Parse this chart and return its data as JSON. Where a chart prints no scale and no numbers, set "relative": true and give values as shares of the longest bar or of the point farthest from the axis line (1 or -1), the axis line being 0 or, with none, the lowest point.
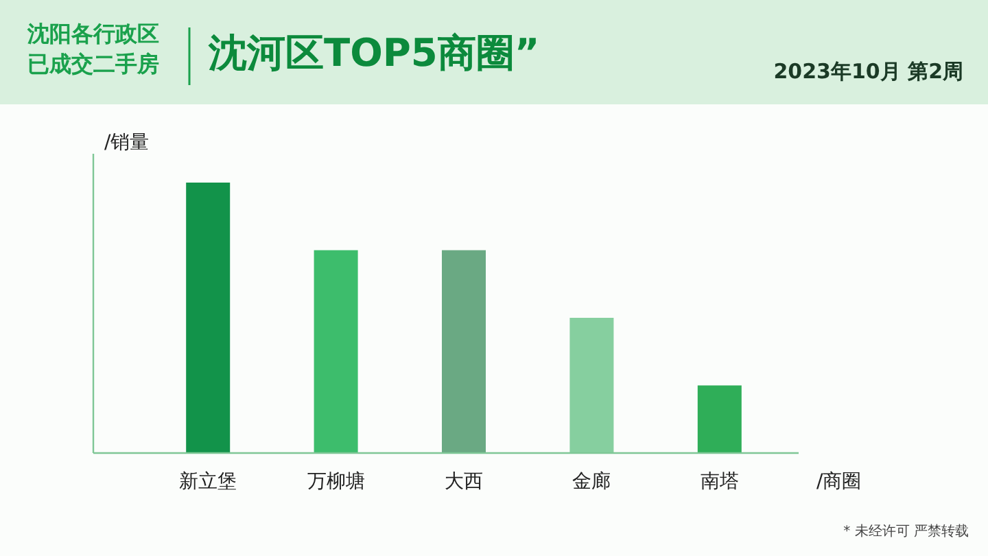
{
  "chart_data": {
    "type": "bar",
    "title": "沈河区TOP5商圈”",
    "subtitle": "沈阳各行政区已成交二手房",
    "annotations": [
      "2023年10月 第2周",
      "* 未经许可 严禁转载"
    ],
    "ylabel": "/销量",
    "xlabel": "/商圈",
    "categories": [
      "新立堡",
      "万柳塘",
      "大西",
      "金廊",
      "南塔"
    ],
    "values": [
      1,
      0.75,
      0.75,
      0.5,
      0.25
    ],
    "colors": [
      "#12934a",
      "#3dbd6c",
      "#6aa983",
      "#86cf9f",
      "#2fae58"
    ],
    "relative": true
  }
}
